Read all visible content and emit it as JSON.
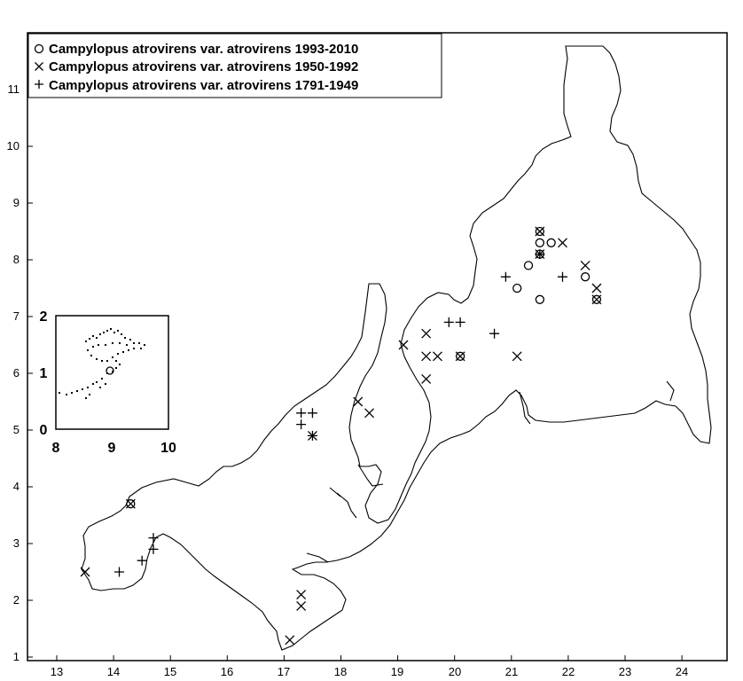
{
  "legend": [
    {
      "label": "Campylopus atrovirens var. atrovirens 1993-2010",
      "symbol": "circle"
    },
    {
      "label": "Campylopus atrovirens var. atrovirens 1950-1992",
      "symbol": "cross-x"
    },
    {
      "label": "Campylopus atrovirens var. atrovirens 1791-1949",
      "symbol": "plus"
    }
  ],
  "x_ticks": [
    "13",
    "14",
    "15",
    "16",
    "17",
    "18",
    "19",
    "20",
    "21",
    "22",
    "23",
    "24"
  ],
  "y_ticks": [
    "1",
    "2",
    "3",
    "4",
    "5",
    "6",
    "7",
    "8",
    "9",
    "10",
    "11"
  ],
  "inset": {
    "x_ticks": [
      "8",
      "9",
      "10"
    ],
    "y_ticks": [
      "0",
      "1",
      "2"
    ]
  },
  "chart_data": {
    "type": "scatter",
    "xlim": [
      12.6,
      24.8
    ],
    "ylim": [
      0.9,
      12.0
    ],
    "series": [
      {
        "name": "Campylopus atrovirens var. atrovirens 1993-2010",
        "marker": "circle",
        "points": [
          [
            21.5,
            8.5
          ],
          [
            21.5,
            8.3
          ],
          [
            21.7,
            8.3
          ],
          [
            21.5,
            8.1
          ],
          [
            21.3,
            7.9
          ],
          [
            21.1,
            7.5
          ],
          [
            21.5,
            7.3
          ],
          [
            22.3,
            7.7
          ],
          [
            22.5,
            7.3
          ],
          [
            20.1,
            6.3
          ],
          [
            14.3,
            3.7
          ]
        ]
      },
      {
        "name": "Campylopus atrovirens var. atrovirens 1950-1992",
        "marker": "x",
        "points": [
          [
            21.5,
            8.5
          ],
          [
            21.5,
            8.1
          ],
          [
            21.9,
            8.3
          ],
          [
            22.3,
            7.9
          ],
          [
            22.5,
            7.5
          ],
          [
            22.5,
            7.3
          ],
          [
            19.1,
            6.5
          ],
          [
            19.5,
            6.7
          ],
          [
            19.5,
            6.3
          ],
          [
            19.7,
            6.3
          ],
          [
            19.5,
            5.9
          ],
          [
            20.1,
            6.3
          ],
          [
            21.1,
            6.3
          ],
          [
            18.3,
            5.5
          ],
          [
            18.5,
            5.3
          ],
          [
            17.5,
            4.9
          ],
          [
            14.3,
            3.7
          ],
          [
            13.5,
            2.5
          ],
          [
            17.3,
            2.1
          ],
          [
            17.3,
            1.9
          ],
          [
            17.1,
            1.3
          ]
        ]
      },
      {
        "name": "Campylopus atrovirens var. atrovirens 1791-1949",
        "marker": "plus",
        "points": [
          [
            21.5,
            8.1
          ],
          [
            20.9,
            7.7
          ],
          [
            21.9,
            7.7
          ],
          [
            19.9,
            6.9
          ],
          [
            20.1,
            6.9
          ],
          [
            20.7,
            6.7
          ],
          [
            17.3,
            5.3
          ],
          [
            17.5,
            5.3
          ],
          [
            17.3,
            5.1
          ],
          [
            17.5,
            4.9
          ],
          [
            14.7,
            3.1
          ],
          [
            14.7,
            2.9
          ],
          [
            14.5,
            2.7
          ],
          [
            14.1,
            2.5
          ]
        ]
      }
    ]
  }
}
